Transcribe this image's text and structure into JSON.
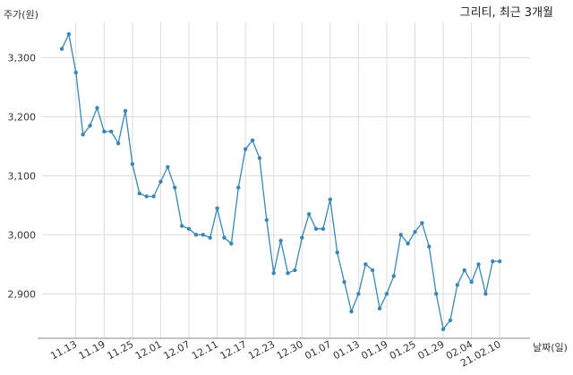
{
  "chart_data": {
    "type": "line",
    "title": "그리티, 최근 3개월",
    "ylabel": "주가(원)",
    "xlabel": "날짜(일)",
    "ylim": [
      2820,
      3360
    ],
    "y_ticks": [
      2900,
      3000,
      3100,
      3200,
      3300
    ],
    "y_tick_labels": [
      "2,900",
      "3,000",
      "3,100",
      "3,200",
      "3,300"
    ],
    "x_tick_labels": [
      "11.13",
      "11.19",
      "11.25",
      "12.01",
      "12.07",
      "12.11",
      "12.17",
      "12.23",
      "12.30",
      "01.07",
      "01.13",
      "01.19",
      "01.25",
      "01.29",
      "02.04",
      "21.02.10"
    ],
    "x_tick_index": [
      2,
      6,
      10,
      14,
      18,
      22,
      26,
      30,
      34,
      38,
      42,
      46,
      50,
      54,
      58,
      62
    ],
    "grid": true,
    "line_color": "#3a87b5",
    "series": [
      {
        "values": [
          3315,
          3340,
          3275,
          3170,
          3185,
          3215,
          3175,
          3175,
          3155,
          3210,
          3120,
          3070,
          3065,
          3065,
          3090,
          3115,
          3080,
          3015,
          3010,
          3000,
          3000,
          2995,
          3045,
          2995,
          2985,
          3080,
          3145,
          3160,
          3130,
          3025,
          2935,
          2990,
          2935,
          2940,
          2995,
          3035,
          3010,
          3010,
          3060,
          2970,
          2920,
          2870,
          2900,
          2950,
          2940,
          2875,
          2900,
          2930,
          3000,
          2985,
          3005,
          3020,
          2980,
          2900,
          2840,
          2855,
          2915,
          2940,
          2920,
          2950,
          2900,
          2955,
          2955
        ]
      }
    ]
  }
}
